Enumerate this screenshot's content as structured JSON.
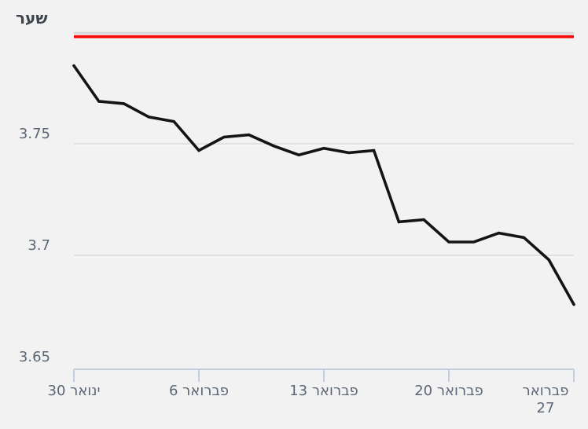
{
  "chart_data": {
    "type": "line",
    "title": "שער",
    "grid": true,
    "legend": "none",
    "ylim": [
      3.65,
      3.814
    ],
    "values": [
      3.785,
      3.769,
      3.768,
      3.762,
      3.76,
      3.747,
      3.753,
      3.754,
      3.749,
      3.745,
      3.748,
      3.746,
      3.747,
      3.715,
      3.716,
      3.706,
      3.706,
      3.71,
      3.708,
      3.698,
      3.678
    ],
    "reference_line": {
      "value": 3.798
    },
    "y_ticks": [
      {
        "value": 3.75,
        "label": "3.75"
      },
      {
        "value": 3.7,
        "label": "3.7"
      },
      {
        "value": 3.65,
        "label": "3.65"
      }
    ],
    "x_ticks": [
      {
        "index": 0,
        "label": "ינואר 30"
      },
      {
        "index": 5,
        "label": "פברואר 6"
      },
      {
        "index": 10,
        "label": "פברואר 13"
      },
      {
        "index": 15,
        "label": "פברואר 20"
      },
      {
        "index": 20,
        "label": "פברואר 27"
      }
    ],
    "colors": {
      "background": "#f2f2f2",
      "series": "#141414",
      "reference": "#fb0404",
      "reference_shadow": "#d9d9d9",
      "axis": "#c3cede",
      "grid": "#e1e1e1",
      "grid_highlight": "#f9f9f9",
      "label": "#5c6775",
      "title": "#3d444c"
    }
  }
}
